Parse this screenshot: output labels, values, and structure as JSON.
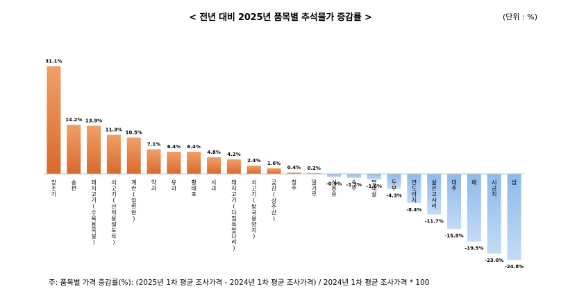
{
  "header": {
    "title": "< 전년 대비 2025년 품목별 추석물가 증감률 >",
    "unit": "(단위 : %)"
  },
  "footnote": "주: 품목별 가격 증감률(%): (2025년 1차 평균 조사가격 - 2024년 1차 평균 조사가격) / 2024년 1차 평균 조사가격 * 100",
  "colors": {
    "positive_top": "#f0a068",
    "positive_bottom": "#d9692c",
    "negative_top": "#c3dbf5",
    "negative_bottom": "#8db9ea",
    "axis": "#bfbfbf"
  },
  "chart_data": {
    "type": "bar",
    "categories": [
      "장조기",
      "송편",
      "돼지고기(수육용목살)",
      "쇠고기(산적용설도육)",
      "계란(일반란)",
      "약과",
      "유과",
      "황태포",
      "사과",
      "돼지고기(다짐육앞다리)",
      "쇠고기(탕국용양지)",
      "곶감(상주산)",
      "청주",
      "밀가루",
      "식용유",
      "숙주",
      "명태살",
      "두부",
      "깐도라지",
      "삶은고사리",
      "대추",
      "배",
      "시금치",
      "밤"
    ],
    "values": [
      31.1,
      14.2,
      13.9,
      11.3,
      10.5,
      7.1,
      6.4,
      6.4,
      4.8,
      4.2,
      2.4,
      1.6,
      0.4,
      0.2,
      -0.9,
      -1.2,
      -1.6,
      -4.3,
      -8.4,
      -11.7,
      -15.9,
      -19.5,
      -23.0,
      -24.8
    ],
    "value_labels": [
      "31.1%",
      "14.2%",
      "13.9%",
      "11.3%",
      "10.5%",
      "7.1%",
      "6.4%",
      "6.4%",
      "4.8%",
      "4.2%",
      "2.4%",
      "1.6%",
      "0.4%",
      "0.2%",
      "-0.9%",
      "-1.2%",
      "-1.6%",
      "-4.3%",
      "-8.4%",
      "-11.7%",
      "-15.9%",
      "-19.5%",
      "-23.0%",
      "-24.8%"
    ],
    "title": "< 전년 대비 2025년 품목별 추석물가 증감률 >",
    "xlabel": "",
    "ylabel": "(단위 : %)",
    "grid": false,
    "legend": "none"
  }
}
